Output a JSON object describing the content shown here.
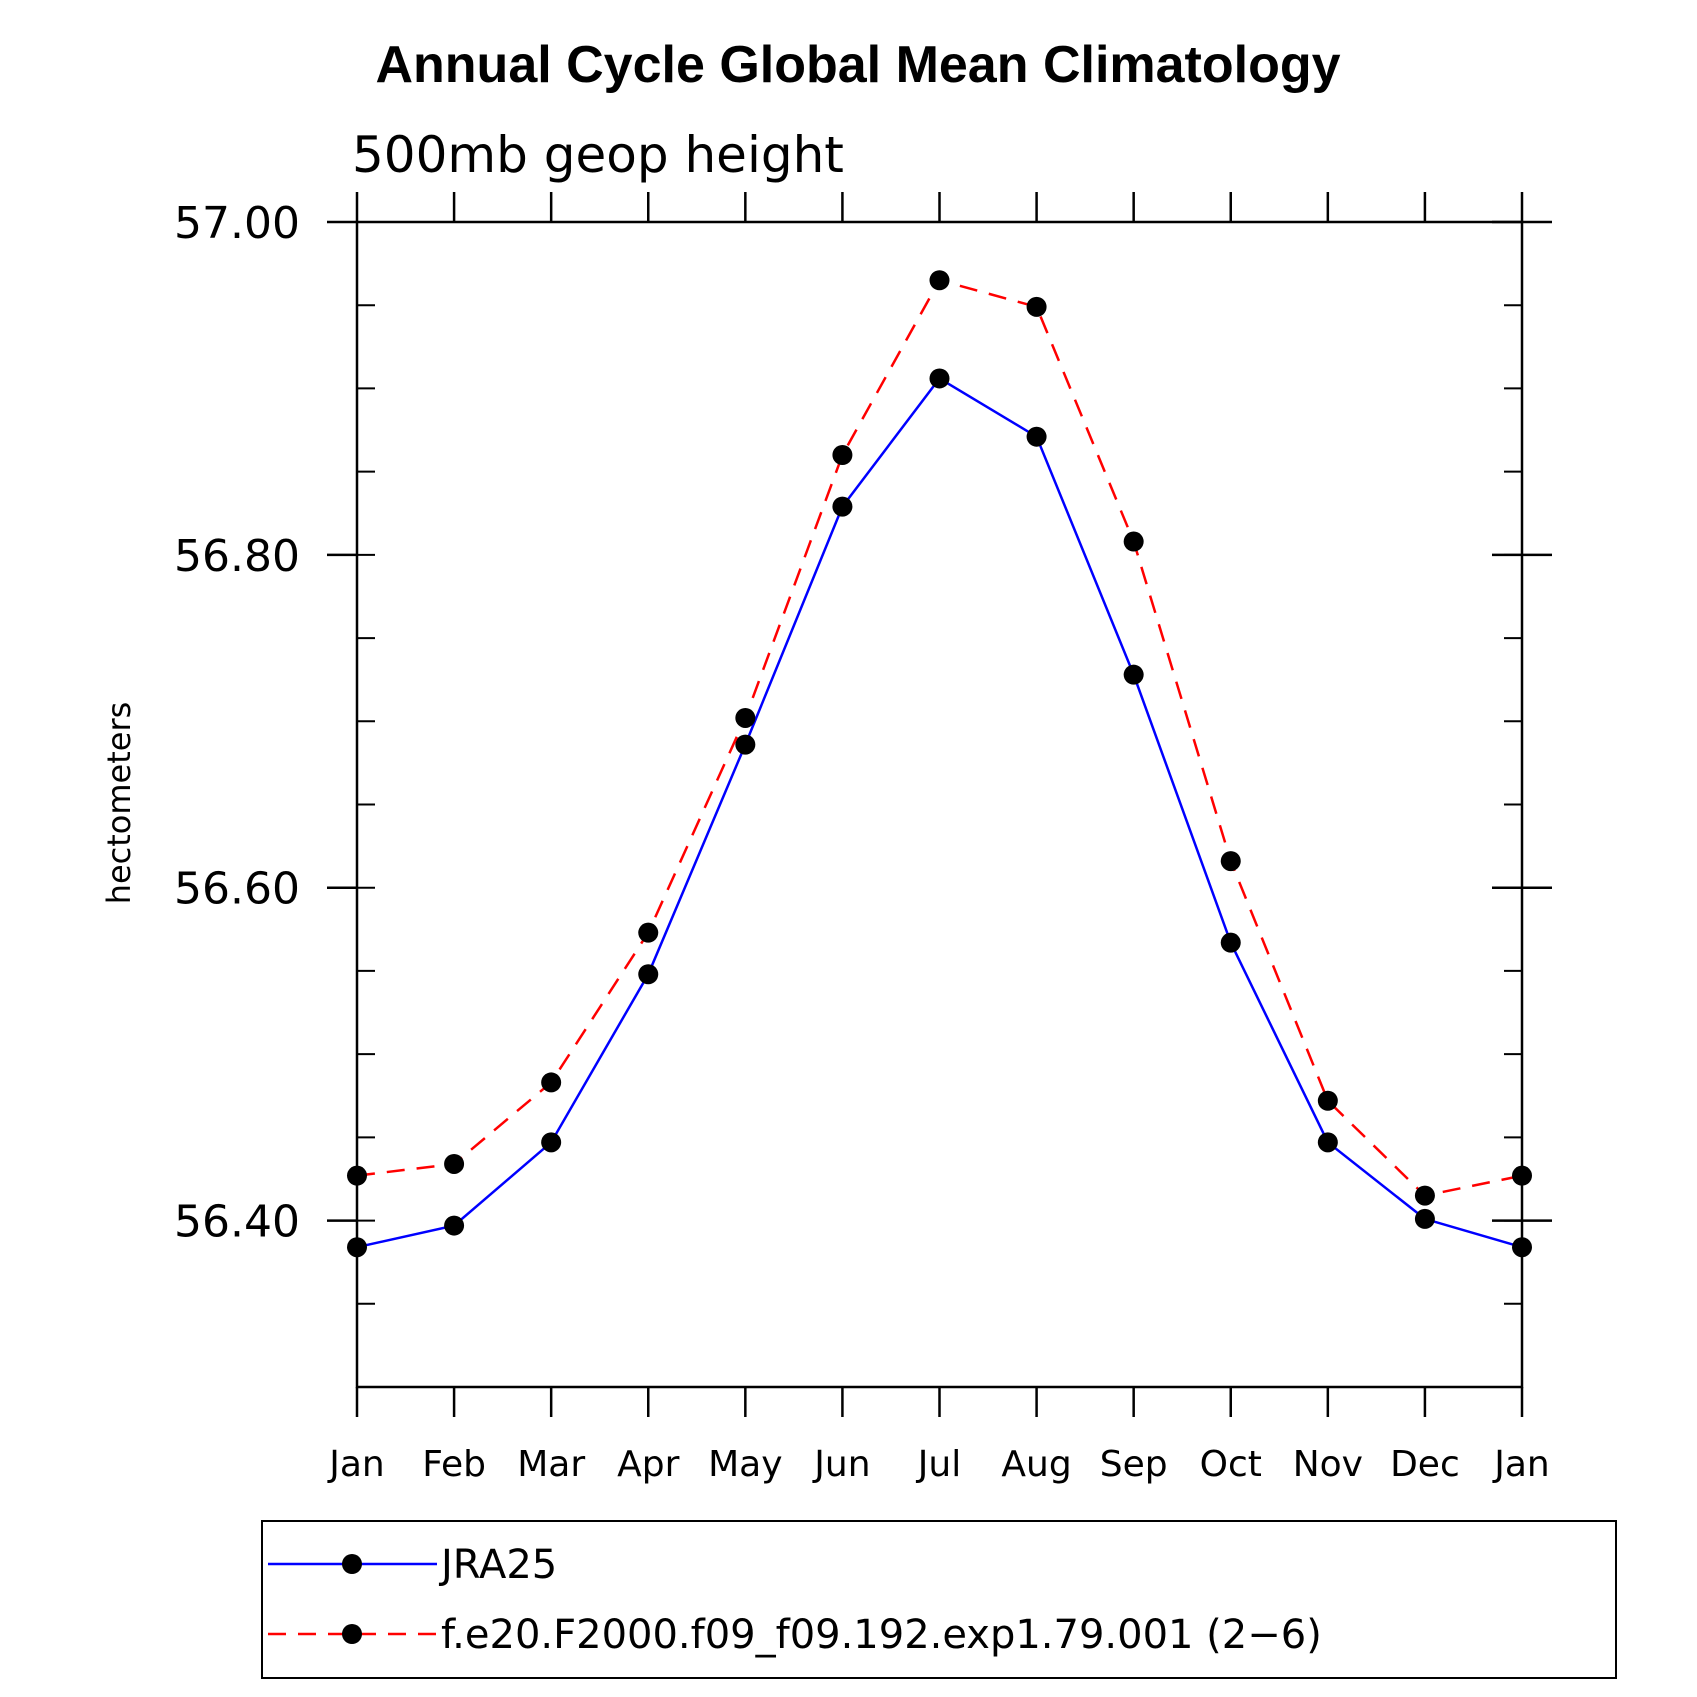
{
  "chart_data": {
    "type": "line",
    "title": "Annual Cycle Global Mean Climatology",
    "subtitle": "500mb geop height",
    "xlabel": "",
    "ylabel": "hectometers",
    "categories": [
      "Jan",
      "Feb",
      "Mar",
      "Apr",
      "May",
      "Jun",
      "Jul",
      "Aug",
      "Sep",
      "Oct",
      "Nov",
      "Dec",
      "Jan"
    ],
    "ylim": [
      56.3,
      57.0
    ],
    "yticks": [
      56.4,
      56.6,
      56.8,
      57.0
    ],
    "ytick_labels": [
      "56.40",
      "56.60",
      "56.80",
      "57.00"
    ],
    "yminor_step": 0.05,
    "grid": false,
    "legend_position": "bottom",
    "series": [
      {
        "name": "JRA25",
        "color": "#0000ff",
        "dash": "solid",
        "marker": "filled-circle",
        "values": [
          56.384,
          56.397,
          56.447,
          56.548,
          56.686,
          56.829,
          56.906,
          56.871,
          56.728,
          56.567,
          56.447,
          56.401,
          56.384
        ]
      },
      {
        "name": "f.e20.F2000.f09_f09.192.exp1.79.001 (2−6)",
        "color": "#ff0000",
        "dash": "dashed",
        "marker": "filled-circle",
        "values": [
          56.427,
          56.434,
          56.483,
          56.573,
          56.702,
          56.86,
          56.965,
          56.949,
          56.808,
          56.616,
          56.472,
          56.415,
          56.427
        ]
      }
    ]
  }
}
